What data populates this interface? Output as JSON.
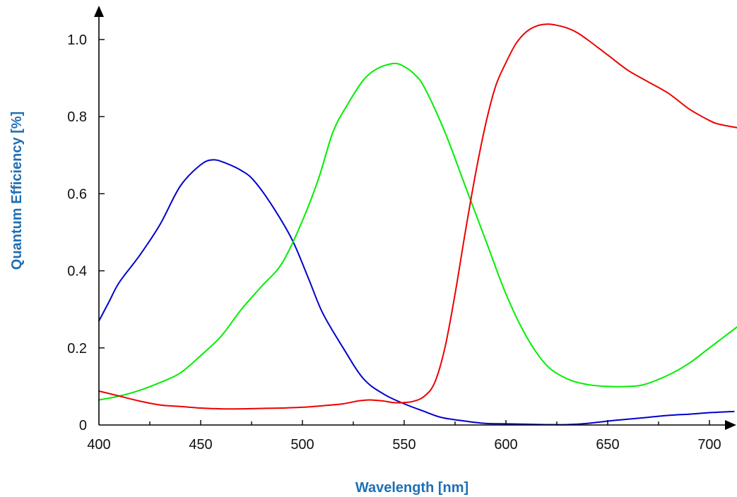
{
  "chart_data": {
    "type": "line",
    "title": "",
    "xlabel": "Wavelength [nm]",
    "ylabel": "Quantum Efficiency [%]",
    "xlim": [
      400,
      715
    ],
    "ylim": [
      0,
      1.07
    ],
    "x_ticks": [
      400,
      450,
      500,
      550,
      600,
      650,
      700
    ],
    "x_tick_labels": [
      "400",
      "450",
      "500",
      "550",
      "600",
      "650",
      "700"
    ],
    "x_minor_ticks": [
      425,
      475,
      525,
      575,
      625,
      675
    ],
    "y_ticks": [
      0,
      0.2,
      0.4,
      0.6,
      0.8,
      1.0
    ],
    "y_tick_labels": [
      "0",
      "0.2",
      "0.4",
      "0.6",
      "0.8",
      "1.0"
    ],
    "grid": false,
    "legend": "none",
    "colors": {
      "axis_title": "#1f6fb5",
      "axis": "#000000"
    },
    "series": [
      {
        "color": "#0000cc",
        "x": [
          400,
          405,
          410,
          420,
          430,
          440,
          450,
          456,
          462,
          470,
          476,
          485,
          495,
          503,
          510,
          520,
          530,
          540,
          550,
          560,
          568,
          580,
          590,
          600,
          610,
          620,
          630,
          640,
          650,
          660,
          670,
          680,
          690,
          700,
          712
        ],
        "y": [
          0.27,
          0.32,
          0.37,
          0.44,
          0.52,
          0.62,
          0.675,
          0.688,
          0.68,
          0.66,
          0.635,
          0.57,
          0.48,
          0.38,
          0.29,
          0.2,
          0.12,
          0.08,
          0.055,
          0.035,
          0.02,
          0.01,
          0.004,
          0.003,
          0.002,
          0.001,
          0.001,
          0.004,
          0.01,
          0.015,
          0.02,
          0.025,
          0.028,
          0.032,
          0.035
        ]
      },
      {
        "color": "#00ee00",
        "x": [
          400,
          410,
          420,
          430,
          440,
          450,
          460,
          470,
          480,
          490,
          500,
          508,
          515,
          522,
          530,
          537,
          545,
          550,
          555,
          560,
          570,
          580,
          590,
          600,
          610,
          620,
          630,
          640,
          650,
          660,
          668,
          680,
          690,
          700,
          715
        ],
        "y": [
          0.065,
          0.075,
          0.09,
          0.11,
          0.135,
          0.18,
          0.23,
          0.3,
          0.36,
          0.42,
          0.53,
          0.64,
          0.76,
          0.83,
          0.895,
          0.925,
          0.938,
          0.93,
          0.91,
          0.875,
          0.76,
          0.62,
          0.48,
          0.34,
          0.23,
          0.155,
          0.12,
          0.105,
          0.1,
          0.1,
          0.105,
          0.13,
          0.16,
          0.2,
          0.26
        ]
      },
      {
        "color": "#ee0000",
        "x": [
          400,
          410,
          420,
          430,
          440,
          450,
          460,
          470,
          480,
          490,
          500,
          510,
          520,
          527,
          533,
          540,
          545,
          550,
          555,
          560,
          565,
          570,
          575,
          580,
          585,
          590,
          595,
          600,
          605,
          610,
          615,
          620,
          625,
          630,
          635,
          640,
          650,
          660,
          670,
          680,
          690,
          700,
          705,
          715
        ],
        "y": [
          0.088,
          0.075,
          0.062,
          0.052,
          0.048,
          0.044,
          0.042,
          0.042,
          0.043,
          0.044,
          0.046,
          0.05,
          0.055,
          0.062,
          0.065,
          0.062,
          0.058,
          0.058,
          0.062,
          0.075,
          0.11,
          0.2,
          0.34,
          0.5,
          0.65,
          0.78,
          0.88,
          0.94,
          0.99,
          1.02,
          1.035,
          1.04,
          1.037,
          1.03,
          1.018,
          1.0,
          0.96,
          0.92,
          0.89,
          0.86,
          0.82,
          0.79,
          0.78,
          0.77
        ]
      }
    ]
  }
}
